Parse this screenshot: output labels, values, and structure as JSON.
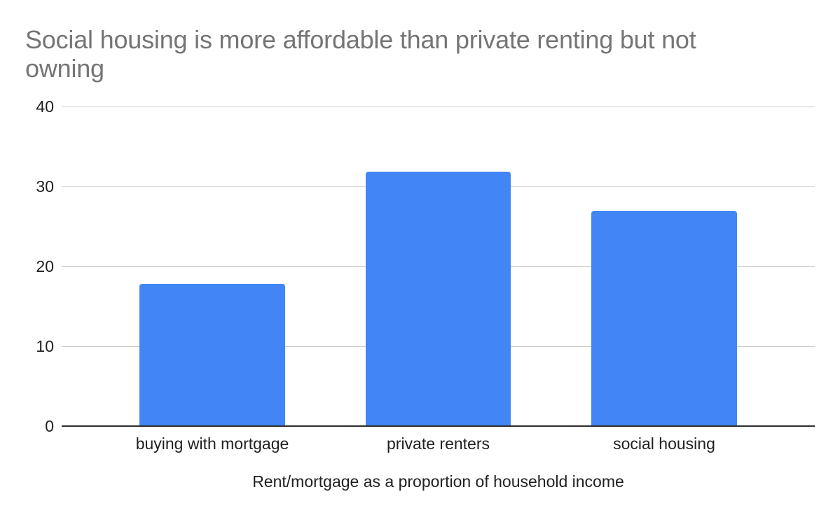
{
  "chart_data": {
    "type": "bar",
    "title": "Social housing is more affordable than private renting but not owning",
    "xlabel": "Rent/mortgage as a proportion of household income",
    "ylabel": "",
    "categories": [
      "buying with mortgage",
      "private renters",
      "social housing"
    ],
    "values": [
      17.8,
      31.8,
      26.9
    ],
    "ylim": [
      0,
      40
    ],
    "yticks": [
      0,
      10,
      20,
      30,
      40
    ],
    "grid": true,
    "legend": "none",
    "colors": {
      "bar": "#4285f4",
      "title_text": "#757575",
      "tick_text": "#212121",
      "gridline": "#cccccc",
      "axis_line": "#2d2d2d",
      "background": "#ffffff"
    }
  }
}
